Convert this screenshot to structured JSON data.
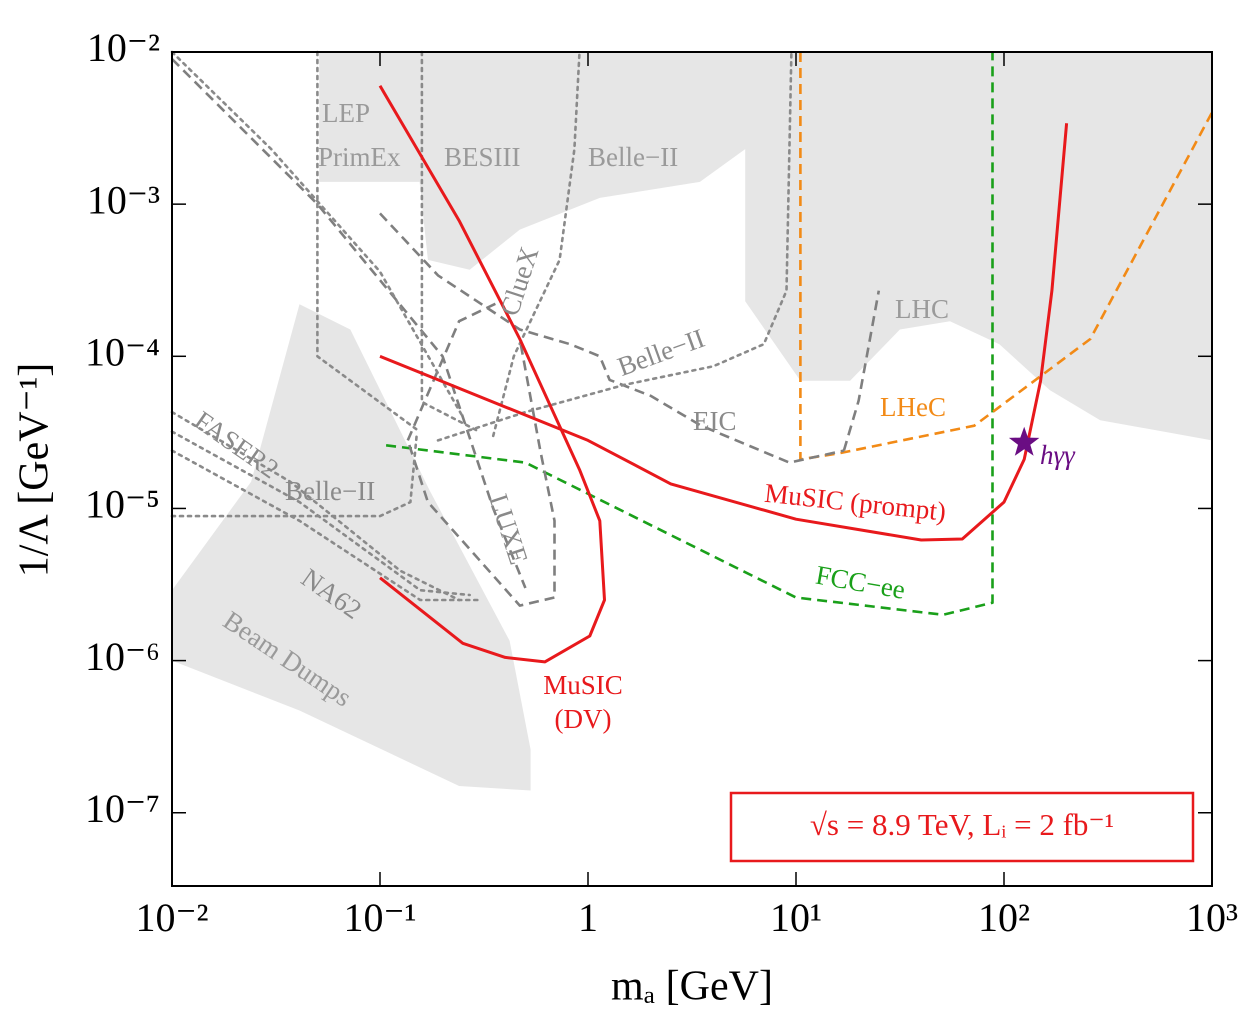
{
  "chart_data": {
    "type": "line",
    "xlabel": "mₐ [GeV]",
    "ylabel": "1/Λ [GeV⁻¹]",
    "log_x": true,
    "log_y": true,
    "xlim": [
      0.01,
      1000
    ],
    "ylim": [
      3.3e-08,
      0.01
    ],
    "xticks": [
      {
        "value": 0.01,
        "label": "10⁻²"
      },
      {
        "value": 0.1,
        "label": "10⁻¹"
      },
      1,
      {
        "value": 10,
        "label": "10¹"
      },
      {
        "value": 100,
        "label": "10²"
      },
      {
        "value": 1000,
        "label": "10³"
      }
    ],
    "yticks": [
      {
        "value": 1e-07,
        "label": "10⁻⁷"
      },
      {
        "value": 1e-06,
        "label": "10⁻⁶"
      },
      {
        "value": 1e-05,
        "label": "10⁻⁵"
      },
      {
        "value": 0.0001,
        "label": "10⁻⁴"
      },
      {
        "value": 0.001,
        "label": "10⁻³"
      },
      {
        "value": 0.01,
        "label": "10⁻²"
      }
    ],
    "regions": [
      {
        "color": "#e6e6e6",
        "x": [
          0.051,
          1000,
          1000,
          290,
          166,
          95,
          55,
          31.6,
          18.2,
          10.5,
          5.7,
          5.7,
          3.45,
          1.14,
          0.47,
          0.27,
          0.17,
          0.155,
          0.051
        ],
        "values": [
          0.01,
          0.01,
          2.8e-05,
          3.8e-05,
          6e-05,
          0.00012,
          0.00017,
          0.00015,
          6.9e-05,
          6.9e-05,
          0.00023,
          0.0023,
          0.0014,
          0.0011,
          0.00068,
          0.00037,
          0.00043,
          0.0014,
          0.0014
        ]
      },
      {
        "color": "#e6e6e6",
        "x": [
          0.041,
          0.072,
          0.174,
          0.42,
          0.53,
          0.53,
          0.24,
          0.041,
          0.01,
          0.01,
          0.024
        ],
        "values": [
          0.00022,
          0.00015,
          1.3e-05,
          1.35e-06,
          2.6e-07,
          1.4e-07,
          1.5e-07,
          4.7e-07,
          1e-06,
          2.9e-06,
          1.5e-05
        ]
      }
    ],
    "series": [
      {
        "color": "#e8191c",
        "style": "solid",
        "x": [
          0.1,
          1,
          2.5,
          10,
          40,
          63,
          100,
          125,
          150,
          170,
          200
        ],
        "values": [
          0.0001,
          2.8e-05,
          1.45e-05,
          8.5e-06,
          6.2e-06,
          6.3e-06,
          1.1e-05,
          2.1e-05,
          6.9e-05,
          0.00027,
          0.0034
        ]
      },
      {
        "color": "#e8191c",
        "style": "solid",
        "x": [
          0.1,
          0.24,
          0.47,
          0.91,
          1.14,
          1.2,
          1.02,
          0.62,
          0.4,
          0.25,
          0.1
        ],
        "values": [
          0.006,
          0.00078,
          0.00013,
          1.8e-05,
          8.3e-06,
          2.5e-06,
          1.45e-06,
          9.8e-07,
          1.05e-06,
          1.3e-06,
          3.5e-06
        ]
      },
      {
        "color": "#1aa01a",
        "style": "dashed",
        "x": [
          0.107,
          0.5,
          10,
          51,
          88,
          88
        ],
        "values": [
          2.6e-05,
          2e-05,
          2.6e-06,
          2e-06,
          2.4e-06,
          0.01
        ]
      },
      {
        "color": "#f28a16",
        "style": "dashed",
        "x": [
          10.5,
          10.5,
          16,
          72,
          260,
          1000
        ],
        "values": [
          0.01,
          2.1e-05,
          2.3e-05,
          3.5e-05,
          0.00013,
          0.004
        ]
      },
      {
        "color": "#7f7f7f",
        "style": "dashed",
        "x": [
          0.1,
          0.19,
          0.47,
          0.82,
          1.14,
          1.27,
          2.0,
          3.5,
          9.3,
          17
        ],
        "values": [
          0.00087,
          0.00034,
          0.00015,
          0.00012,
          0.0001,
          7e-05,
          5.5e-05,
          3.5e-05,
          2e-05,
          2.4e-05
        ]
      },
      {
        "color": "#7f7f7f",
        "style": "dashed",
        "x": [
          17,
          20,
          25
        ],
        "values": [
          2.4e-05,
          5.1e-05,
          0.00027
        ]
      },
      {
        "color": "#7f7f7f",
        "style": "dashed",
        "x": [
          0.136,
          0.24,
          0.38,
          0.47,
          0.59,
          0.69,
          0.69,
          0.47,
          0.3,
          0.17,
          0.136
        ],
        "values": [
          2.8e-05,
          0.00017,
          0.00023,
          0.00013,
          2.4e-05,
          8.3e-06,
          2.6e-06,
          2.3e-06,
          4.6e-06,
          1.1e-05,
          2.8e-05
        ]
      },
      {
        "color": "#7f7f7f",
        "style": "dashed",
        "x": [
          0.01,
          0.05,
          0.2,
          0.35,
          0.5
        ],
        "values": [
          0.009,
          0.001,
          0.0001,
          1e-05,
          3e-06
        ]
      },
      {
        "color": "#8a8a8a",
        "style": "dotted",
        "x": [
          0.01,
          0.037,
          0.125,
          0.24
        ],
        "values": [
          4.3e-05,
          1.5e-05,
          3.9e-06,
          2.5e-06
        ]
      },
      {
        "color": "#8a8a8a",
        "style": "dotted",
        "x": [
          0.01,
          0.041,
          0.156,
          0.27
        ],
        "values": [
          3.2e-05,
          1.1e-05,
          2.9e-06,
          2.7e-06
        ]
      },
      {
        "color": "#8a8a8a",
        "style": "dotted",
        "x": [
          0.01,
          0.041,
          0.156,
          0.3
        ],
        "values": [
          2.4e-05,
          8.3e-06,
          2.5e-06,
          2.5e-06
        ]
      },
      {
        "color": "#8a8a8a",
        "style": "dotted",
        "x": [
          0.01,
          0.1,
          0.14,
          0.15
        ],
        "values": [
          8.9e-06,
          8.9e-06,
          1.1e-05,
          3e-05
        ]
      },
      {
        "color": "#8a8a8a",
        "style": "dotted",
        "x": [
          0.19,
          0.5,
          1.5,
          4,
          7,
          9,
          9.5
        ],
        "values": [
          2.8e-05,
          4.3e-05,
          6.5e-05,
          8.6e-05,
          0.00012,
          0.00027,
          0.01
        ]
      },
      {
        "color": "#8a8a8a",
        "style": "dotted",
        "x": [
          0.35,
          0.44,
          0.73,
          0.86,
          0.91
        ],
        "values": [
          3e-05,
          0.0001,
          0.00043,
          0.0023,
          0.01
        ]
      },
      {
        "color": "#8a8a8a",
        "style": "dotted",
        "x": [
          0.05,
          0.05,
          0.155
        ],
        "values": [
          0.01,
          0.0001,
          3.2e-05
        ]
      },
      {
        "color": "#8a8a8a",
        "style": "dotted",
        "x": [
          0.159,
          0.159,
          0.3
        ],
        "values": [
          0.01,
          5e-05,
          3.2e-05
        ]
      },
      {
        "color": "#8a8a8a",
        "style": "dotted",
        "x": [
          0.01,
          0.03,
          0.1,
          0.25
        ],
        "values": [
          0.01,
          0.0023,
          0.00036,
          4e-05
        ]
      }
    ],
    "marker": {
      "x": 125,
      "y": 2.7e-05,
      "color": "#6a0d83"
    },
    "annotations": [
      {
        "text": "LEP",
        "color": "#9a9a9a"
      },
      {
        "text": "PrimEx",
        "color": "#9a9a9a"
      },
      {
        "text": "BESIII",
        "color": "#9a9a9a"
      },
      {
        "text": "Belle−II",
        "color": "#9a9a9a"
      },
      {
        "text": "ClueX",
        "color": "#8a8a8a"
      },
      {
        "text": "LHC",
        "color": "#9a9a9a"
      },
      {
        "text": "Belle−II",
        "color": "#8a8a8a"
      },
      {
        "text": "EIC",
        "color": "#8a8a8a"
      },
      {
        "text": "FASER2",
        "color": "#8a8a8a"
      },
      {
        "text": "Belle−II",
        "color": "#8a8a8a"
      },
      {
        "text": "LUXE",
        "color": "#8a8a8a"
      },
      {
        "text": "NA62",
        "color": "#8a8a8a"
      },
      {
        "text": "Beam Dumps",
        "color": "#9a9a9a"
      },
      {
        "text": "LHeC",
        "color": "#f28a16"
      },
      {
        "text": "MuSIC (prompt)",
        "color": "#e8191c"
      },
      {
        "text": "FCC−ee",
        "color": "#1aa01a"
      },
      {
        "text": "MuSIC",
        "color": "#e8191c"
      },
      {
        "text": "(DV)",
        "color": "#e8191c"
      },
      {
        "text": "hγγ",
        "color": "#6a0d83"
      }
    ],
    "box": {
      "text": "√s = 8.9 TeV,  Lᵢ = 2 fb⁻¹",
      "color": "#e8191c"
    }
  }
}
